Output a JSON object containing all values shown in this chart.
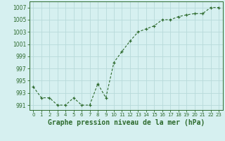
{
  "x": [
    0,
    1,
    2,
    3,
    4,
    5,
    6,
    7,
    8,
    9,
    10,
    11,
    12,
    13,
    14,
    15,
    16,
    17,
    18,
    19,
    20,
    21,
    22,
    23
  ],
  "y": [
    994.0,
    992.2,
    992.2,
    991.0,
    991.0,
    992.2,
    991.0,
    991.0,
    994.5,
    992.2,
    998.0,
    999.8,
    1001.5,
    1003.0,
    1003.5,
    1004.0,
    1005.0,
    1005.0,
    1005.5,
    1005.8,
    1006.0,
    1006.0,
    1007.0,
    1007.0
  ],
  "line_color": "#2d6a2d",
  "marker_color": "#2d6a2d",
  "bg_color": "#d6f0f0",
  "grid_color": "#b8dada",
  "xlabel": "Graphe pression niveau de la mer (hPa)",
  "xlabel_fontsize": 7,
  "ylabel_ticks": [
    991,
    993,
    995,
    997,
    999,
    1001,
    1003,
    1005,
    1007
  ],
  "ylim": [
    990.2,
    1008.0
  ],
  "xlim": [
    -0.5,
    23.5
  ],
  "tick_color": "#2d6a2d",
  "label_color": "#2d6a2d",
  "ytick_fontsize": 5.5,
  "xtick_fontsize": 5.0
}
